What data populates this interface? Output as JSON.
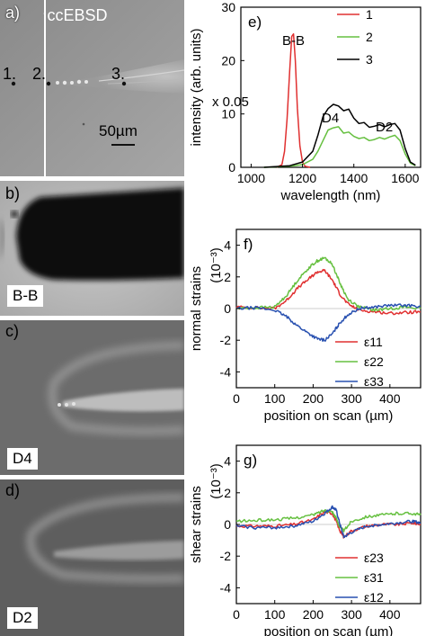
{
  "panel_a": {
    "label": "a)",
    "method": "ccEBSD",
    "point_labels": [
      "1.",
      "2.",
      "3."
    ],
    "scalebar": "50µm"
  },
  "panel_b": {
    "label": "b)",
    "tag": "B-B"
  },
  "panel_c": {
    "label": "c)",
    "tag": "D4"
  },
  "panel_d": {
    "label": "d)",
    "tag": "D2"
  },
  "chart_data": [
    {
      "id": "e",
      "type": "line",
      "label": "e)",
      "xlabel": "wavelength (nm)",
      "ylabel": "intensity (arb. units)",
      "xlim": [
        960,
        1660
      ],
      "ylim": [
        0,
        30
      ],
      "xticks": [
        1000,
        1200,
        1400,
        1600
      ],
      "yticks": [
        0,
        10,
        20,
        30
      ],
      "legend_position": "top-right",
      "annotations": [
        "B-B",
        "x 0.05",
        "D4",
        "D2"
      ],
      "series": [
        {
          "name": "1",
          "color": "#e03030",
          "x": [
            1100,
            1120,
            1130,
            1140,
            1150,
            1158,
            1165,
            1172,
            1180,
            1190,
            1200,
            1210,
            1230
          ],
          "y": [
            0,
            0.5,
            3,
            9,
            18,
            24.5,
            25,
            20,
            11,
            4,
            1,
            0.2,
            0
          ]
        },
        {
          "name": "2",
          "color": "#66c040",
          "x": [
            1050,
            1150,
            1200,
            1240,
            1260,
            1280,
            1300,
            1320,
            1340,
            1360,
            1380,
            1400,
            1420,
            1440,
            1460,
            1480,
            1500,
            1520,
            1540,
            1560,
            1580,
            1600,
            1620,
            1640
          ],
          "y": [
            0,
            0.2,
            0.5,
            1.5,
            3,
            5,
            7,
            7.4,
            7.6,
            6.4,
            6.6,
            5.8,
            5.4,
            5.6,
            5,
            5.2,
            5.6,
            5.3,
            5.7,
            6,
            5,
            2.5,
            0.8,
            0.3
          ]
        },
        {
          "name": "3",
          "color": "#000000",
          "x": [
            1050,
            1150,
            1200,
            1240,
            1260,
            1280,
            1300,
            1320,
            1340,
            1360,
            1380,
            1400,
            1420,
            1440,
            1460,
            1480,
            1500,
            1520,
            1540,
            1560,
            1580,
            1600,
            1620,
            1640
          ],
          "y": [
            0,
            0.3,
            1,
            3,
            6,
            9.5,
            11,
            11.8,
            11.5,
            10.6,
            10.9,
            9.2,
            8.2,
            8.4,
            7.5,
            7.7,
            8,
            7.6,
            8,
            8.2,
            7,
            3.5,
            1,
            0.4
          ]
        }
      ]
    },
    {
      "id": "f",
      "type": "line",
      "label": "f)",
      "xlabel": "position on scan (µm)",
      "ylabel": "normal strains",
      "ylabel_unit": "(10⁻³)",
      "xlim": [
        0,
        480
      ],
      "ylim": [
        -5,
        5
      ],
      "xticks": [
        0,
        100,
        200,
        300,
        400
      ],
      "yticks": [
        -4,
        -2,
        0,
        2,
        4
      ],
      "legend_position": "bottom-right",
      "series": [
        {
          "name": "ε11",
          "color": "#e03030",
          "x": [
            0,
            50,
            100,
            130,
            160,
            190,
            210,
            230,
            250,
            270,
            290,
            320,
            360,
            400,
            440,
            480
          ],
          "y": [
            0.1,
            0.05,
            0,
            0.5,
            1.3,
            1.9,
            2.3,
            2.4,
            1.8,
            0.9,
            0.3,
            -0.1,
            -0.2,
            -0.3,
            -0.25,
            -0.2
          ]
        },
        {
          "name": "ε22",
          "color": "#66c040",
          "x": [
            0,
            50,
            100,
            130,
            160,
            190,
            210,
            230,
            250,
            270,
            290,
            320,
            360,
            400,
            440,
            480
          ],
          "y": [
            0,
            0.05,
            0.1,
            0.8,
            1.8,
            2.6,
            3,
            3.2,
            2.8,
            1.6,
            0.6,
            0.1,
            -0.1,
            0,
            0.1,
            0
          ]
        },
        {
          "name": "ε33",
          "color": "#2850b0",
          "x": [
            0,
            50,
            100,
            130,
            160,
            190,
            210,
            230,
            250,
            270,
            290,
            320,
            360,
            400,
            440,
            480
          ],
          "y": [
            0,
            0.05,
            -0.1,
            -0.5,
            -1.1,
            -1.6,
            -1.9,
            -2.0,
            -1.6,
            -0.9,
            -0.4,
            0,
            0.1,
            0.2,
            0.2,
            0.15
          ]
        }
      ]
    },
    {
      "id": "g",
      "type": "line",
      "label": "g)",
      "xlabel": "position on scan (µm)",
      "ylabel": "shear strains",
      "ylabel_unit": "(10⁻³)",
      "xlim": [
        0,
        480
      ],
      "ylim": [
        -5,
        5
      ],
      "xticks": [
        0,
        100,
        200,
        300,
        400
      ],
      "yticks": [
        -4,
        -2,
        0,
        2,
        4
      ],
      "legend_position": "bottom-right",
      "series": [
        {
          "name": "ε23",
          "color": "#e03030",
          "x": [
            0,
            50,
            100,
            150,
            200,
            230,
            250,
            260,
            270,
            280,
            300,
            340,
            380,
            420,
            460,
            480
          ],
          "y": [
            -0.1,
            -0.1,
            -0.1,
            0,
            0.3,
            0.8,
            0.7,
            0.2,
            -0.4,
            -0.8,
            -0.4,
            -0.1,
            0,
            0,
            0.1,
            0
          ]
        },
        {
          "name": "ε31",
          "color": "#66c040",
          "x": [
            0,
            50,
            100,
            150,
            200,
            230,
            250,
            260,
            270,
            280,
            300,
            340,
            380,
            420,
            460,
            480
          ],
          "y": [
            0.2,
            0.25,
            0.3,
            0.4,
            0.6,
            0.9,
            0.8,
            0.4,
            -0.2,
            -0.4,
            0.2,
            0.5,
            0.6,
            0.7,
            0.7,
            0.6
          ]
        },
        {
          "name": "ε12",
          "color": "#2850b0",
          "x": [
            0,
            50,
            100,
            150,
            200,
            230,
            250,
            260,
            270,
            280,
            300,
            340,
            380,
            420,
            460,
            480
          ],
          "y": [
            -0.1,
            -0.2,
            -0.2,
            -0.1,
            0.2,
            0.7,
            1.1,
            0.9,
            0,
            -0.8,
            -0.5,
            -0.1,
            0,
            0.1,
            0.2,
            0.1
          ]
        }
      ]
    }
  ]
}
